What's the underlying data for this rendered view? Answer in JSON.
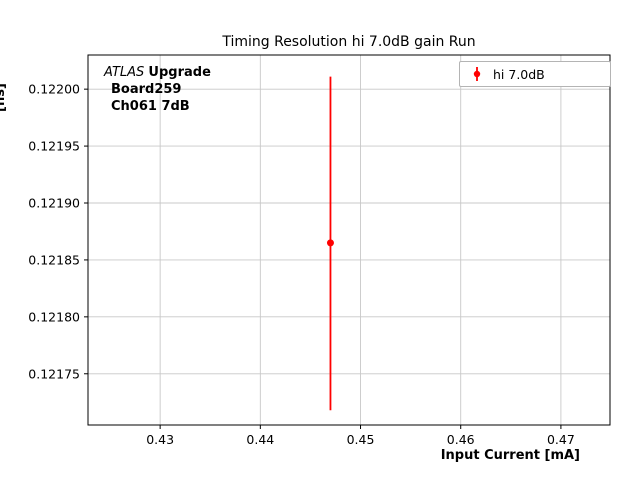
{
  "chart_data": {
    "type": "scatter",
    "title": "Timing Resolution hi 7.0dB gain Run",
    "xlabel": "Input Current [mA]",
    "ylabel_visible_fragment": "[ns]",
    "xlim": [
      0.4228,
      0.4749
    ],
    "ylim": [
      0.121705,
      0.12203
    ],
    "grid": true,
    "xticks": {
      "values": [
        0.43,
        0.44,
        0.45,
        0.46,
        0.47
      ],
      "labels": [
        "0.43",
        "0.44",
        "0.45",
        "0.46",
        "0.47"
      ]
    },
    "yticks": {
      "values": [
        0.12175,
        0.1218,
        0.12185,
        0.1219,
        0.12195,
        0.122
      ],
      "labels": [
        "0.12175",
        "0.12180",
        "0.12185",
        "0.12190",
        "0.12195",
        "0.12200"
      ]
    },
    "series": [
      {
        "name": "hi 7.0dB",
        "color": "#ff0000",
        "points": [
          {
            "x": 0.447,
            "y": 0.121865,
            "y_low": 0.121718,
            "y_high": 0.122011
          }
        ]
      }
    ],
    "legend": {
      "position": "upper right",
      "entries": [
        "hi 7.0dB"
      ]
    }
  },
  "annotation": {
    "atlas": "ATLAS",
    "upgrade": "Upgrade",
    "line2": "Board259",
    "line3": "Ch061 7dB"
  },
  "colors": {
    "series": "#ff0000",
    "grid": "#c8c8c8",
    "axes": "#000000",
    "legend_border": "#b4b4b4"
  }
}
